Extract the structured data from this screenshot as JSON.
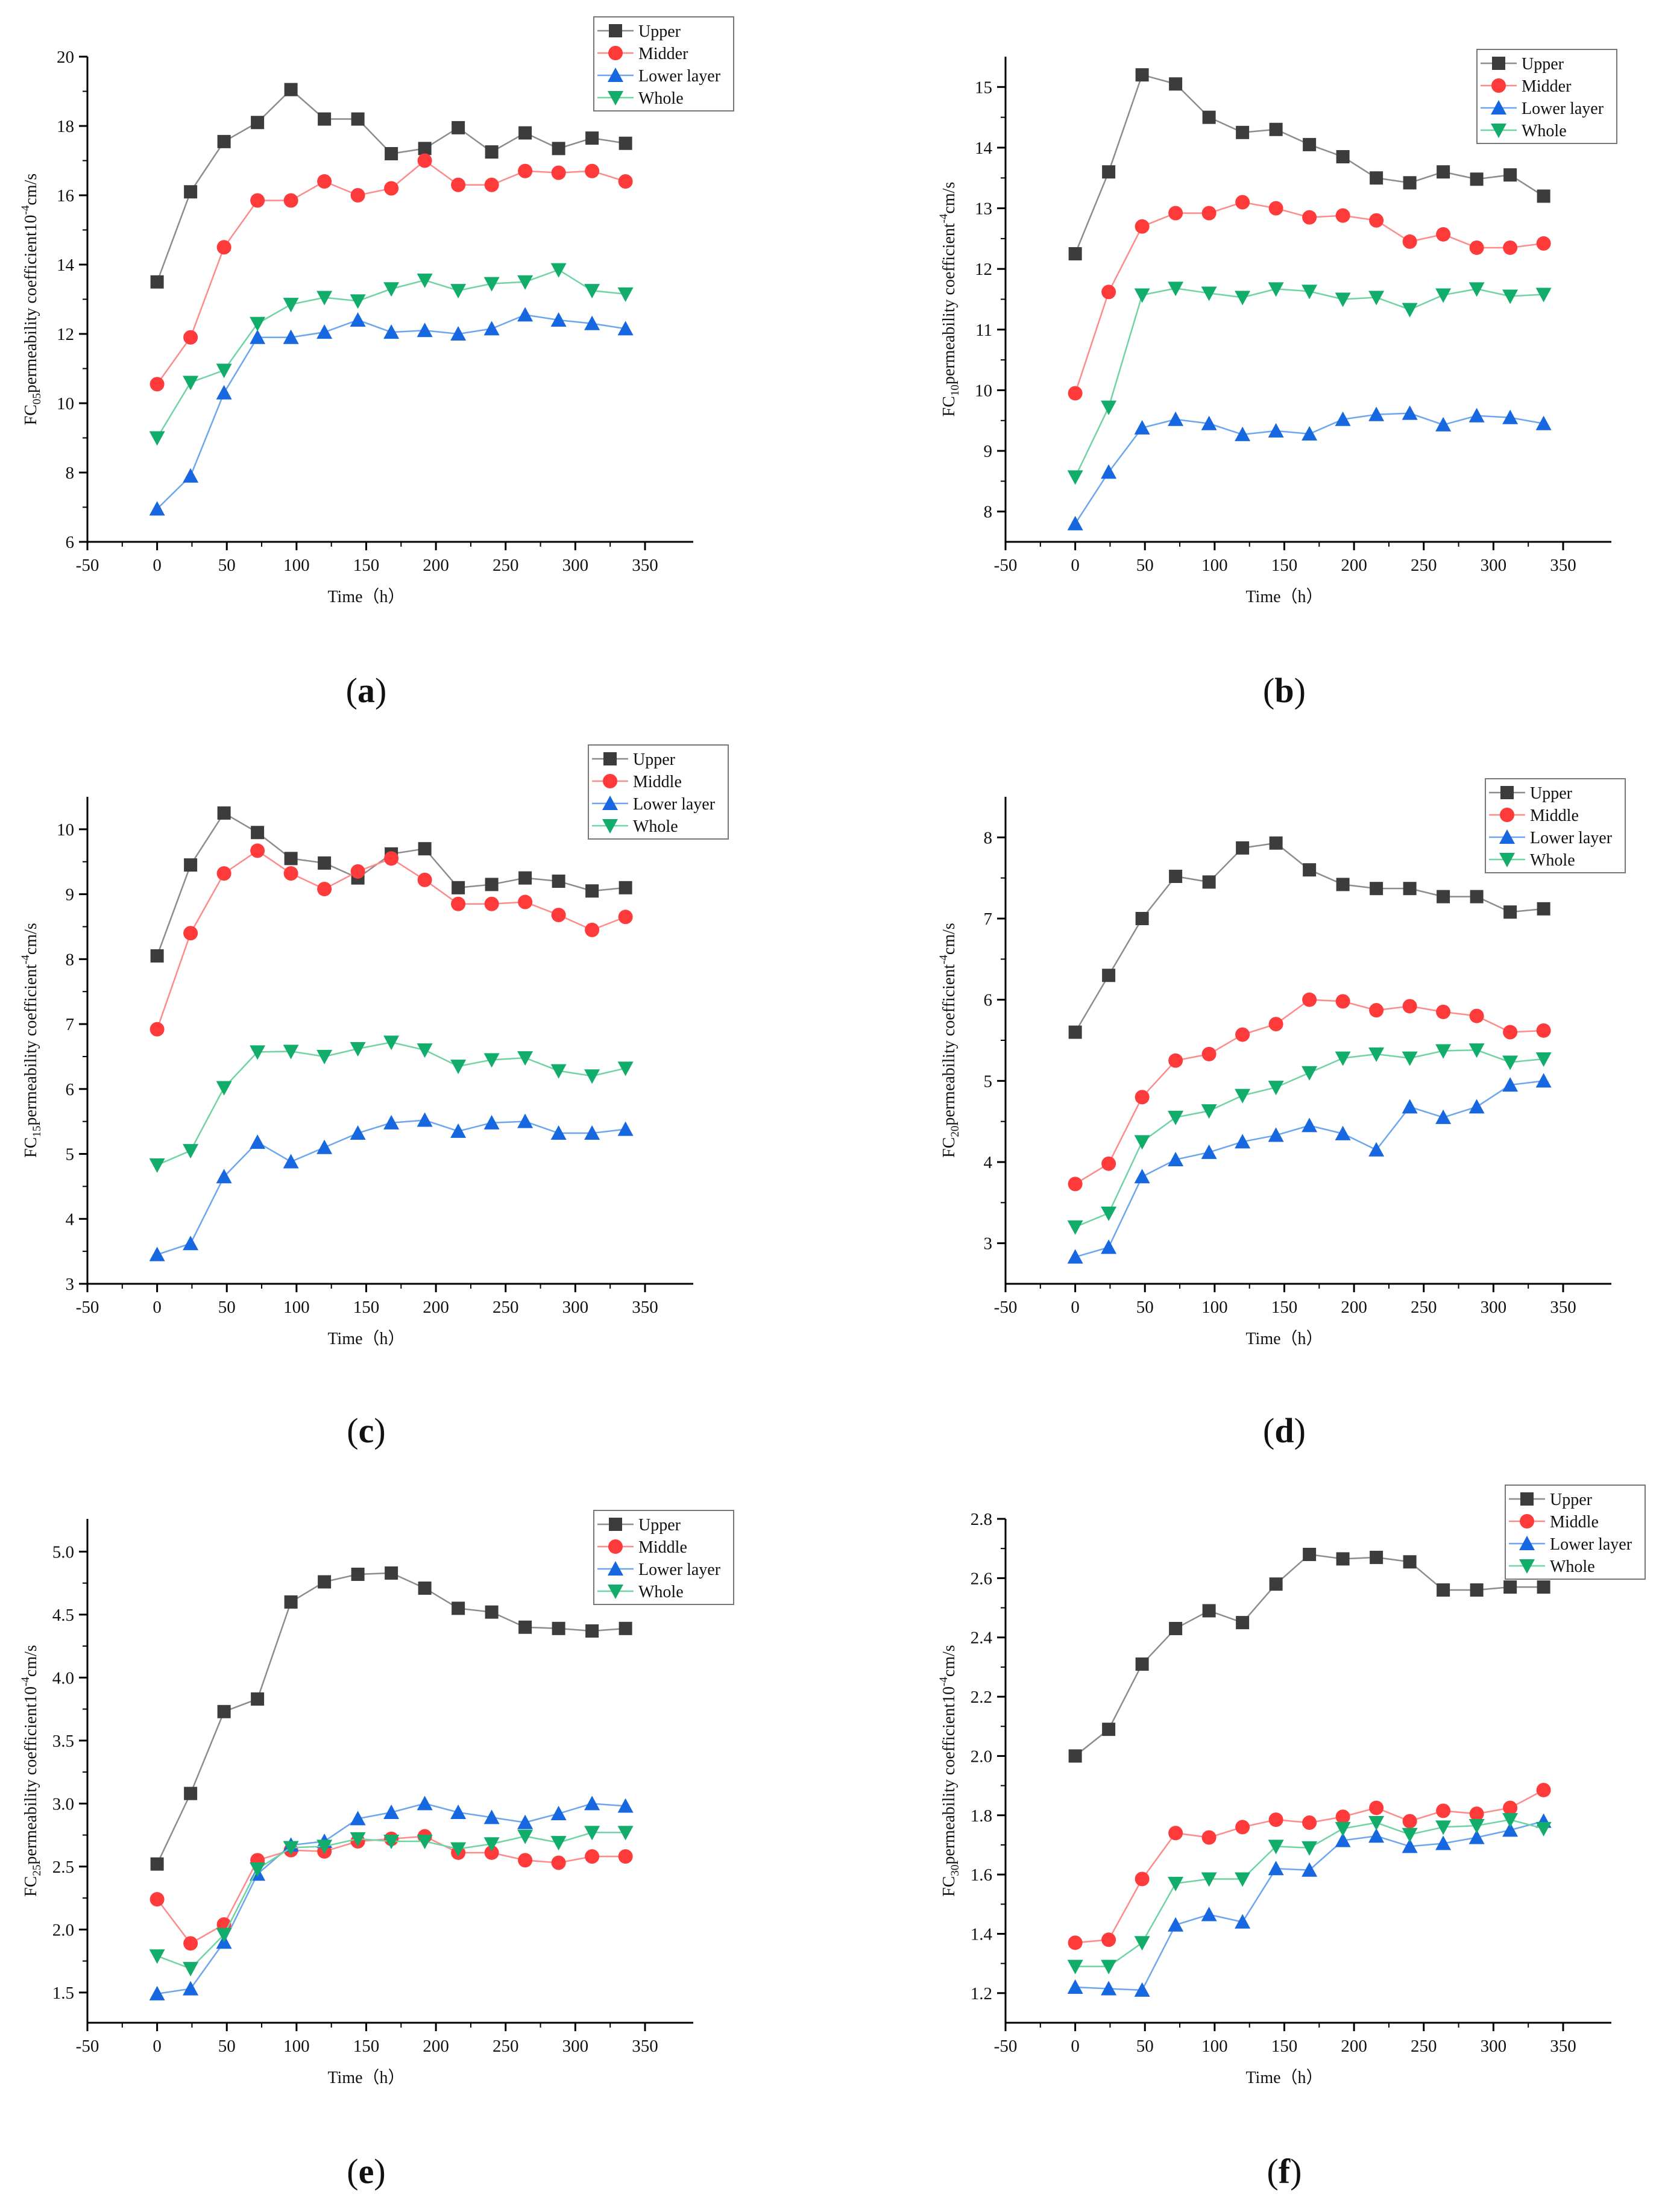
{
  "chart_data": [
    {
      "panel": "a",
      "caption_letter": "a",
      "type": "line",
      "ylabel": {
        "prefix": "FC",
        "sub": "05",
        "main": "permeability coefficient10",
        "sup": "-4",
        "unit": "cm/s"
      },
      "xlabel": "Time（h）",
      "xlim": [
        -50,
        350
      ],
      "xticks": [
        -50,
        0,
        50,
        100,
        150,
        200,
        250,
        300,
        350
      ],
      "ylim": [
        6,
        20
      ],
      "yticks": [
        6,
        8,
        10,
        12,
        14,
        16,
        18,
        20
      ],
      "legend_position": "top-right",
      "x": [
        0,
        24,
        48,
        72,
        96,
        120,
        144,
        168,
        192,
        216,
        240,
        264,
        288,
        312,
        336
      ],
      "series": [
        {
          "name": "Upper",
          "values": [
            13.5,
            16.1,
            17.55,
            18.1,
            19.05,
            18.2,
            18.2,
            17.2,
            17.35,
            17.95,
            17.25,
            17.8,
            17.35,
            17.65,
            17.5
          ]
        },
        {
          "name": "Midder",
          "values": [
            10.55,
            11.9,
            14.5,
            15.85,
            15.85,
            16.4,
            16.0,
            16.2,
            17.0,
            16.3,
            16.3,
            16.7,
            16.65,
            16.7,
            16.4
          ]
        },
        {
          "name": "Lower layer",
          "values": [
            6.95,
            7.9,
            10.3,
            11.9,
            11.9,
            12.05,
            12.4,
            12.05,
            12.1,
            12.0,
            12.15,
            12.55,
            12.4,
            12.3,
            12.15
          ]
        },
        {
          "name": "Whole",
          "values": [
            9.0,
            10.6,
            10.95,
            12.3,
            12.85,
            13.05,
            12.95,
            13.3,
            13.55,
            13.25,
            13.45,
            13.5,
            13.85,
            13.25,
            13.15
          ]
        }
      ]
    },
    {
      "panel": "b",
      "caption_letter": "b",
      "type": "line",
      "ylabel": {
        "prefix": "FC",
        "sub": "10",
        "main": "permeability coefficient",
        "sup": "-4",
        "unit": "cm/s"
      },
      "xlabel": "Time（h）",
      "xlim": [
        -50,
        350
      ],
      "xticks": [
        -50,
        0,
        50,
        100,
        150,
        200,
        250,
        300,
        350
      ],
      "ylim": [
        7.5,
        15.5
      ],
      "yticks": [
        8,
        9,
        10,
        11,
        12,
        13,
        14,
        15
      ],
      "legend_position": "top-right",
      "x": [
        0,
        24,
        48,
        72,
        96,
        120,
        144,
        168,
        192,
        216,
        240,
        264,
        288,
        312,
        336
      ],
      "series": [
        {
          "name": "Upper",
          "values": [
            12.25,
            13.6,
            15.2,
            15.05,
            14.5,
            14.25,
            14.3,
            14.05,
            13.85,
            13.5,
            13.42,
            13.6,
            13.48,
            13.55,
            13.2
          ]
        },
        {
          "name": "Midder",
          "values": [
            9.95,
            11.62,
            12.7,
            12.92,
            12.92,
            13.1,
            13.0,
            12.85,
            12.88,
            12.8,
            12.45,
            12.57,
            12.35,
            12.35,
            12.42
          ]
        },
        {
          "name": "Lower layer",
          "values": [
            7.8,
            8.65,
            9.38,
            9.52,
            9.45,
            9.27,
            9.33,
            9.28,
            9.52,
            9.6,
            9.62,
            9.43,
            9.58,
            9.55,
            9.45
          ]
        },
        {
          "name": "Whole",
          "values": [
            8.57,
            9.72,
            11.57,
            11.68,
            11.6,
            11.53,
            11.67,
            11.63,
            11.5,
            11.53,
            11.33,
            11.57,
            11.67,
            11.55,
            11.58
          ]
        }
      ]
    },
    {
      "panel": "c",
      "caption_letter": "c",
      "type": "line",
      "ylabel": {
        "prefix": "FC",
        "sub": "15",
        "main": "permeability coefficient",
        "sup": "-4",
        "unit": "cm/s"
      },
      "xlabel": "Time（h）",
      "xlim": [
        -50,
        350
      ],
      "xticks": [
        -50,
        0,
        50,
        100,
        150,
        200,
        250,
        300,
        350
      ],
      "ylim": [
        3,
        10.5
      ],
      "yticks": [
        3,
        4,
        5,
        6,
        7,
        8,
        9,
        10
      ],
      "legend_position": "top-right",
      "x": [
        0,
        24,
        48,
        72,
        96,
        120,
        144,
        168,
        192,
        216,
        240,
        264,
        288,
        312,
        336
      ],
      "series": [
        {
          "name": "Upper",
          "values": [
            8.05,
            9.45,
            10.25,
            9.95,
            9.55,
            9.48,
            9.25,
            9.62,
            9.7,
            9.1,
            9.15,
            9.25,
            9.2,
            9.05,
            9.1
          ]
        },
        {
          "name": "Middle",
          "values": [
            6.92,
            8.4,
            9.32,
            9.67,
            9.32,
            9.08,
            9.35,
            9.55,
            9.22,
            8.85,
            8.85,
            8.88,
            8.68,
            8.45,
            8.65
          ]
        },
        {
          "name": "Lower layer",
          "values": [
            3.45,
            3.62,
            4.65,
            5.18,
            4.88,
            5.1,
            5.32,
            5.48,
            5.52,
            5.35,
            5.48,
            5.5,
            5.32,
            5.32,
            5.38
          ]
        },
        {
          "name": "Whole",
          "values": [
            4.83,
            5.05,
            6.02,
            6.57,
            6.58,
            6.5,
            6.62,
            6.72,
            6.6,
            6.35,
            6.45,
            6.48,
            6.28,
            6.2,
            6.32
          ]
        }
      ]
    },
    {
      "panel": "d",
      "caption_letter": "d",
      "type": "line",
      "ylabel": {
        "prefix": "FC",
        "sub": "20",
        "main": "permeability coefficient",
        "sup": "-4",
        "unit": "cm/s"
      },
      "xlabel": "Time（h）",
      "xlim": [
        -50,
        350
      ],
      "xticks": [
        -50,
        0,
        50,
        100,
        150,
        200,
        250,
        300,
        350
      ],
      "ylim": [
        2.5,
        8.5
      ],
      "yticks": [
        3,
        4,
        5,
        6,
        7,
        8
      ],
      "legend_position": "top-right",
      "x": [
        0,
        24,
        48,
        72,
        96,
        120,
        144,
        168,
        192,
        216,
        240,
        264,
        288,
        312,
        336
      ],
      "series": [
        {
          "name": "Upper",
          "values": [
            5.6,
            6.3,
            7.0,
            7.52,
            7.45,
            7.87,
            7.93,
            7.6,
            7.42,
            7.37,
            7.37,
            7.27,
            7.27,
            7.08,
            7.12
          ]
        },
        {
          "name": "Middle",
          "values": [
            3.73,
            3.98,
            4.8,
            5.25,
            5.33,
            5.57,
            5.7,
            6.0,
            5.98,
            5.87,
            5.92,
            5.85,
            5.8,
            5.6,
            5.62
          ]
        },
        {
          "name": "Lower layer",
          "values": [
            2.83,
            2.95,
            3.82,
            4.03,
            4.12,
            4.25,
            4.33,
            4.45,
            4.35,
            4.15,
            4.68,
            4.55,
            4.68,
            4.95,
            5.0
          ]
        },
        {
          "name": "Whole",
          "values": [
            3.2,
            3.37,
            4.25,
            4.55,
            4.63,
            4.82,
            4.92,
            5.1,
            5.28,
            5.33,
            5.28,
            5.37,
            5.38,
            5.23,
            5.27
          ]
        }
      ]
    },
    {
      "panel": "e",
      "caption_letter": "e",
      "type": "line",
      "ylabel": {
        "prefix": "FC",
        "sub": "25",
        "main": "permeability coefficient10",
        "sup": "-4",
        "unit": "cm/s"
      },
      "xlabel": "Time（h）",
      "xlim": [
        -50,
        350
      ],
      "xticks": [
        -50,
        0,
        50,
        100,
        150,
        200,
        250,
        300,
        350
      ],
      "ylim": [
        1.26,
        5.26
      ],
      "yticks": [
        "1.5",
        "2.0",
        "2.5",
        "3.0",
        "3.5",
        "4.0",
        "4.5",
        "5.0"
      ],
      "legend_position": "top-right",
      "x": [
        0,
        24,
        48,
        72,
        96,
        120,
        144,
        168,
        192,
        216,
        240,
        264,
        288,
        312,
        336
      ],
      "series": [
        {
          "name": "Upper",
          "values": [
            2.52,
            3.08,
            3.73,
            3.83,
            4.6,
            4.76,
            4.82,
            4.83,
            4.71,
            4.55,
            4.52,
            4.4,
            4.39,
            4.37,
            4.39
          ]
        },
        {
          "name": "Middle",
          "values": [
            2.24,
            1.89,
            2.04,
            2.55,
            2.63,
            2.62,
            2.7,
            2.72,
            2.74,
            2.61,
            2.61,
            2.55,
            2.53,
            2.58,
            2.58
          ]
        },
        {
          "name": "Lower layer",
          "values": [
            1.49,
            1.53,
            1.9,
            2.44,
            2.67,
            2.7,
            2.88,
            2.93,
            3.0,
            2.93,
            2.89,
            2.85,
            2.92,
            3.0,
            2.98
          ]
        },
        {
          "name": "Whole",
          "values": [
            1.79,
            1.69,
            1.96,
            2.48,
            2.65,
            2.66,
            2.72,
            2.7,
            2.7,
            2.64,
            2.68,
            2.74,
            2.69,
            2.77,
            2.77
          ]
        }
      ]
    },
    {
      "panel": "f",
      "caption_letter": "f",
      "type": "line",
      "ylabel": {
        "prefix": "FC",
        "sub": "30",
        "main": "permeability coefficient10",
        "sup": "-4",
        "unit": "cm/s"
      },
      "xlabel": "Time（h）",
      "xlim": [
        -50,
        350
      ],
      "xticks": [
        -50,
        0,
        50,
        100,
        150,
        200,
        250,
        300,
        350
      ],
      "ylim": [
        1.1,
        2.8
      ],
      "yticks": [
        "1.2",
        "1.4",
        "1.6",
        "1.8",
        "2.0",
        "2.2",
        "2.4",
        "2.6",
        "2.8"
      ],
      "legend_position": "top-right",
      "x": [
        0,
        24,
        48,
        72,
        96,
        120,
        144,
        168,
        192,
        216,
        240,
        264,
        288,
        312,
        336
      ],
      "series": [
        {
          "name": "Upper",
          "values": [
            2.0,
            2.09,
            2.31,
            2.43,
            2.49,
            2.45,
            2.58,
            2.68,
            2.665,
            2.67,
            2.655,
            2.56,
            2.56,
            2.57,
            2.57
          ]
        },
        {
          "name": "Middle",
          "values": [
            1.37,
            1.38,
            1.585,
            1.74,
            1.725,
            1.76,
            1.785,
            1.775,
            1.795,
            1.825,
            1.78,
            1.815,
            1.805,
            1.825,
            1.885
          ]
        },
        {
          "name": "Lower layer",
          "values": [
            1.22,
            1.215,
            1.21,
            1.43,
            1.465,
            1.44,
            1.62,
            1.615,
            1.715,
            1.73,
            1.695,
            1.705,
            1.725,
            1.75,
            1.78
          ]
        },
        {
          "name": "Whole",
          "values": [
            1.29,
            1.29,
            1.37,
            1.57,
            1.585,
            1.585,
            1.695,
            1.69,
            1.755,
            1.775,
            1.735,
            1.76,
            1.765,
            1.785,
            1.755
          ]
        }
      ]
    }
  ],
  "style": {
    "series_colors": [
      {
        "marker": "#3c3c3c",
        "line": "#8c8c8c",
        "shape": "square"
      },
      {
        "marker": "#ff3a3a",
        "line": "#ff8a8a",
        "shape": "circle"
      },
      {
        "marker": "#1768e0",
        "line": "#6ba6ee",
        "shape": "triangle-up"
      },
      {
        "marker": "#12ad6b",
        "line": "#6fd3a4",
        "shape": "triangle-down"
      }
    ]
  }
}
